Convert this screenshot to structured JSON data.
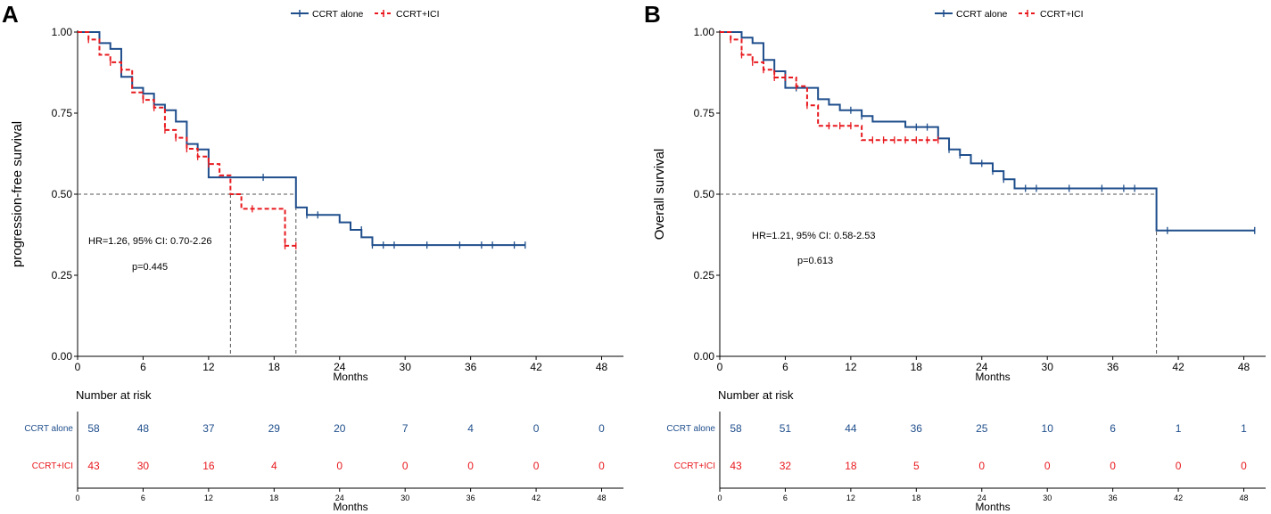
{
  "legend": {
    "series": [
      {
        "name": "CCRT alone",
        "color": "#1f4e8c"
      },
      {
        "name": "CCRT+ICI",
        "color": "#e8191e"
      }
    ]
  },
  "chart_data": [
    {
      "type": "line",
      "panel_label": "A",
      "ylabel": "progression-free survival",
      "xlabel": "Months",
      "ylim": [
        0,
        1
      ],
      "xlim": [
        0,
        50
      ],
      "yticks": [
        "0.00",
        "0.25",
        "0.50",
        "0.75",
        "1.00"
      ],
      "xticks": [
        "0",
        "6",
        "12",
        "18",
        "24",
        "30",
        "36",
        "42",
        "48"
      ],
      "median_line": 0.5,
      "medians": [
        20,
        14
      ],
      "annotation_hr": "HR=1.26, 95% CI: 0.70-2.26",
      "annotation_p": "p=0.445",
      "series": [
        {
          "name": "CCRT alone",
          "color": "#1f4e8c",
          "steps": [
            [
              0,
              1
            ],
            [
              2,
              0.966
            ],
            [
              3,
              0.948
            ],
            [
              4,
              0.862
            ],
            [
              5,
              0.828
            ],
            [
              6,
              0.81
            ],
            [
              7,
              0.776
            ],
            [
              8,
              0.759
            ],
            [
              9,
              0.724
            ],
            [
              10,
              0.655
            ],
            [
              11,
              0.638
            ],
            [
              12,
              0.552
            ],
            [
              20,
              0.459
            ],
            [
              21,
              0.436
            ],
            [
              24,
              0.413
            ],
            [
              25,
              0.39
            ],
            [
              26,
              0.367
            ],
            [
              27,
              0.343
            ],
            [
              41,
              0.343
            ]
          ],
          "censors": [
            [
              17,
              0.552
            ],
            [
              21,
              0.436
            ],
            [
              22,
              0.436
            ],
            [
              26,
              0.39
            ],
            [
              27,
              0.343
            ],
            [
              28,
              0.343
            ],
            [
              29,
              0.343
            ],
            [
              32,
              0.343
            ],
            [
              35,
              0.343
            ],
            [
              37,
              0.343
            ],
            [
              38,
              0.343
            ],
            [
              40,
              0.343
            ],
            [
              41,
              0.343
            ]
          ]
        },
        {
          "name": "CCRT+ICI",
          "color": "#e8191e",
          "steps": [
            [
              0,
              1
            ],
            [
              1,
              0.977
            ],
            [
              2,
              0.93
            ],
            [
              3,
              0.907
            ],
            [
              4,
              0.884
            ],
            [
              5,
              0.814
            ],
            [
              6,
              0.791
            ],
            [
              7,
              0.767
            ],
            [
              8,
              0.698
            ],
            [
              9,
              0.674
            ],
            [
              10,
              0.64
            ],
            [
              11,
              0.616
            ],
            [
              12,
              0.593
            ],
            [
              13,
              0.558
            ],
            [
              14,
              0.5
            ],
            [
              15,
              0.455
            ],
            [
              19,
              0.341
            ],
            [
              20,
              0.341
            ]
          ],
          "censors": [
            [
              1,
              0.977
            ],
            [
              3,
              0.907
            ],
            [
              4,
              0.884
            ],
            [
              6,
              0.791
            ],
            [
              7,
              0.767
            ],
            [
              8,
              0.698
            ],
            [
              9,
              0.674
            ],
            [
              10,
              0.64
            ],
            [
              11,
              0.616
            ],
            [
              12,
              0.593
            ],
            [
              16,
              0.455
            ],
            [
              19,
              0.341
            ],
            [
              20,
              0.341
            ]
          ]
        }
      ],
      "risk_table": {
        "title": "Number at risk",
        "times": [
          0,
          6,
          12,
          18,
          24,
          30,
          36,
          42,
          48
        ],
        "rows": [
          {
            "label": "CCRT alone",
            "color": "#1f4e8c",
            "values": [
              "58",
              "48",
              "37",
              "29",
              "20",
              "7",
              "4",
              "0",
              "0"
            ]
          },
          {
            "label": "CCRT+ICI",
            "color": "#e8191e",
            "values": [
              "43",
              "30",
              "16",
              "4",
              "0",
              "0",
              "0",
              "0",
              "0"
            ]
          }
        ]
      }
    },
    {
      "type": "line",
      "panel_label": "B",
      "ylabel": "Overall survival",
      "xlabel": "Months",
      "ylim": [
        0,
        1
      ],
      "xlim": [
        0,
        50
      ],
      "yticks": [
        "0.00",
        "0.25",
        "0.50",
        "0.75",
        "1.00"
      ],
      "xticks": [
        "0",
        "6",
        "12",
        "18",
        "24",
        "30",
        "36",
        "42",
        "48"
      ],
      "median_line": 0.5,
      "medians": [
        40
      ],
      "annotation_hr": "HR=1.21, 95% CI: 0.58-2.53",
      "annotation_p": "p=0.613",
      "series": [
        {
          "name": "CCRT alone",
          "color": "#1f4e8c",
          "steps": [
            [
              0,
              1
            ],
            [
              2,
              0.983
            ],
            [
              3,
              0.966
            ],
            [
              4,
              0.914
            ],
            [
              5,
              0.879
            ],
            [
              6,
              0.828
            ],
            [
              9,
              0.793
            ],
            [
              10,
              0.776
            ],
            [
              11,
              0.759
            ],
            [
              13,
              0.741
            ],
            [
              14,
              0.724
            ],
            [
              17,
              0.707
            ],
            [
              20,
              0.672
            ],
            [
              21,
              0.638
            ],
            [
              22,
              0.621
            ],
            [
              23,
              0.595
            ],
            [
              25,
              0.571
            ],
            [
              26,
              0.546
            ],
            [
              27,
              0.518
            ],
            [
              40,
              0.388
            ],
            [
              49,
              0.388
            ]
          ],
          "censors": [
            [
              4,
              0.914
            ],
            [
              7,
              0.828
            ],
            [
              12,
              0.759
            ],
            [
              13,
              0.741
            ],
            [
              18,
              0.707
            ],
            [
              19,
              0.707
            ],
            [
              21,
              0.638
            ],
            [
              22,
              0.621
            ],
            [
              24,
              0.595
            ],
            [
              25,
              0.571
            ],
            [
              26,
              0.546
            ],
            [
              28,
              0.518
            ],
            [
              29,
              0.518
            ],
            [
              32,
              0.518
            ],
            [
              35,
              0.518
            ],
            [
              37,
              0.518
            ],
            [
              38,
              0.518
            ],
            [
              41,
              0.388
            ],
            [
              49,
              0.388
            ]
          ]
        },
        {
          "name": "CCRT+ICI",
          "color": "#e8191e",
          "steps": [
            [
              0,
              1
            ],
            [
              1,
              0.977
            ],
            [
              2,
              0.93
            ],
            [
              3,
              0.907
            ],
            [
              4,
              0.884
            ],
            [
              5,
              0.86
            ],
            [
              7,
              0.833
            ],
            [
              8,
              0.774
            ],
            [
              9,
              0.711
            ],
            [
              13,
              0.667
            ],
            [
              20,
              0.667
            ]
          ],
          "censors": [
            [
              1,
              0.977
            ],
            [
              2,
              0.93
            ],
            [
              3,
              0.907
            ],
            [
              4,
              0.884
            ],
            [
              5,
              0.86
            ],
            [
              6,
              0.86
            ],
            [
              7,
              0.833
            ],
            [
              8,
              0.774
            ],
            [
              10,
              0.711
            ],
            [
              11,
              0.711
            ],
            [
              12,
              0.711
            ],
            [
              14,
              0.667
            ],
            [
              15,
              0.667
            ],
            [
              16,
              0.667
            ],
            [
              17,
              0.667
            ],
            [
              18,
              0.667
            ],
            [
              19,
              0.667
            ],
            [
              20,
              0.667
            ]
          ]
        }
      ],
      "risk_table": {
        "title": "Number at risk",
        "times": [
          0,
          6,
          12,
          18,
          24,
          30,
          36,
          42,
          48
        ],
        "rows": [
          {
            "label": "CCRT alone",
            "color": "#1f4e8c",
            "values": [
              "58",
              "51",
              "44",
              "36",
              "25",
              "10",
              "6",
              "1",
              "1"
            ]
          },
          {
            "label": "CCRT+ICI",
            "color": "#e8191e",
            "values": [
              "43",
              "32",
              "18",
              "5",
              "0",
              "0",
              "0",
              "0",
              "0"
            ]
          }
        ]
      }
    }
  ]
}
